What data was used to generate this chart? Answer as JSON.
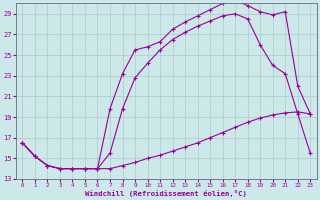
{
  "title": "",
  "xlabel": "Windchill (Refroidissement éolien,°C)",
  "bg_color": "#cce8e8",
  "line_color": "#990099",
  "grid_color": "#aacccc",
  "xlim": [
    -0.5,
    23.5
  ],
  "ylim": [
    13,
    30
  ],
  "xticks": [
    0,
    1,
    2,
    3,
    4,
    5,
    6,
    7,
    8,
    9,
    10,
    11,
    12,
    13,
    14,
    15,
    16,
    17,
    18,
    19,
    20,
    21,
    22,
    23
  ],
  "yticks": [
    13,
    15,
    17,
    19,
    21,
    23,
    25,
    27,
    29
  ],
  "upper_line": {
    "x": [
      0,
      1,
      2,
      3,
      4,
      5,
      6,
      7,
      8,
      9,
      10,
      11,
      12,
      13,
      14,
      15,
      16,
      17,
      18,
      19,
      20,
      21,
      22,
      23
    ],
    "y": [
      16.5,
      15.2,
      14.3,
      14.0,
      14.0,
      14.0,
      14.0,
      19.8,
      23.2,
      25.5,
      25.8,
      26.3,
      27.5,
      28.2,
      28.8,
      29.4,
      30.0,
      30.3,
      29.8,
      29.2,
      28.9,
      29.2,
      22.0,
      19.3
    ]
  },
  "middle_line": {
    "x": [
      0,
      1,
      2,
      3,
      4,
      5,
      6,
      7,
      8,
      9,
      10,
      11,
      12,
      13,
      14,
      15,
      16,
      17,
      18,
      19,
      20,
      21,
      22,
      23
    ],
    "y": [
      16.5,
      15.2,
      14.3,
      14.0,
      14.0,
      14.0,
      14.0,
      15.5,
      19.8,
      22.8,
      24.2,
      25.5,
      26.5,
      27.2,
      27.8,
      28.3,
      28.8,
      29.0,
      28.5,
      26.0,
      24.0,
      23.2,
      19.3,
      15.5
    ]
  },
  "lower_line": {
    "x": [
      0,
      1,
      2,
      3,
      4,
      5,
      6,
      7,
      8,
      9,
      10,
      11,
      12,
      13,
      14,
      15,
      16,
      17,
      18,
      19,
      20,
      21,
      22,
      23
    ],
    "y": [
      16.5,
      15.2,
      14.3,
      14.0,
      14.0,
      14.0,
      14.0,
      14.0,
      14.3,
      14.6,
      15.0,
      15.3,
      15.7,
      16.1,
      16.5,
      17.0,
      17.5,
      18.0,
      18.5,
      18.9,
      19.2,
      19.4,
      19.5,
      19.3
    ]
  }
}
